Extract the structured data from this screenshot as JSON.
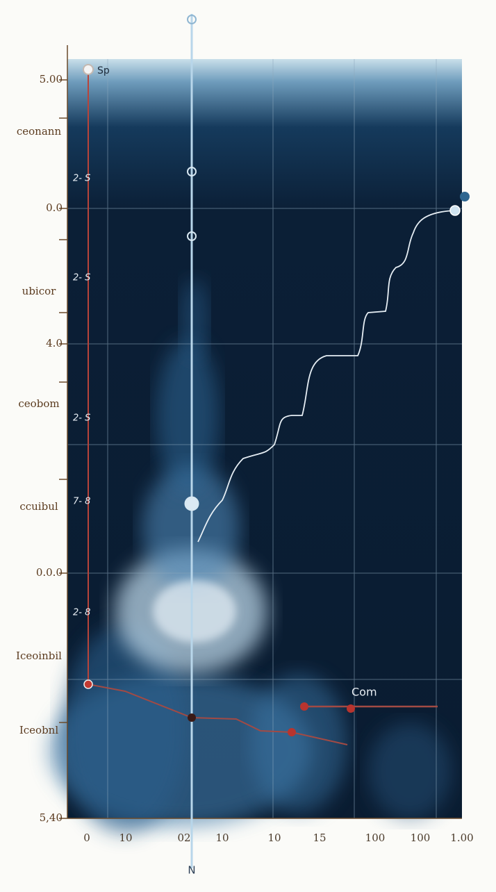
{
  "y_labels": [
    "5.00",
    "0.0",
    "4.0",
    "0.0.0",
    "5,40"
  ],
  "side_labels": [
    "ceonann",
    "ubicor",
    "ceobom",
    "ccuibul",
    "Iceoinbil",
    "Iceobnl"
  ],
  "inner_labels": [
    "2- S",
    "2- S",
    "2- S",
    "7- 8",
    "2- 8"
  ],
  "x_labels": [
    "0",
    "10",
    "02",
    "10",
    "10",
    "15",
    "100",
    "100",
    "1.00"
  ],
  "top_label": "Sp",
  "legend_label": "Com",
  "axis_marker": "N"
}
